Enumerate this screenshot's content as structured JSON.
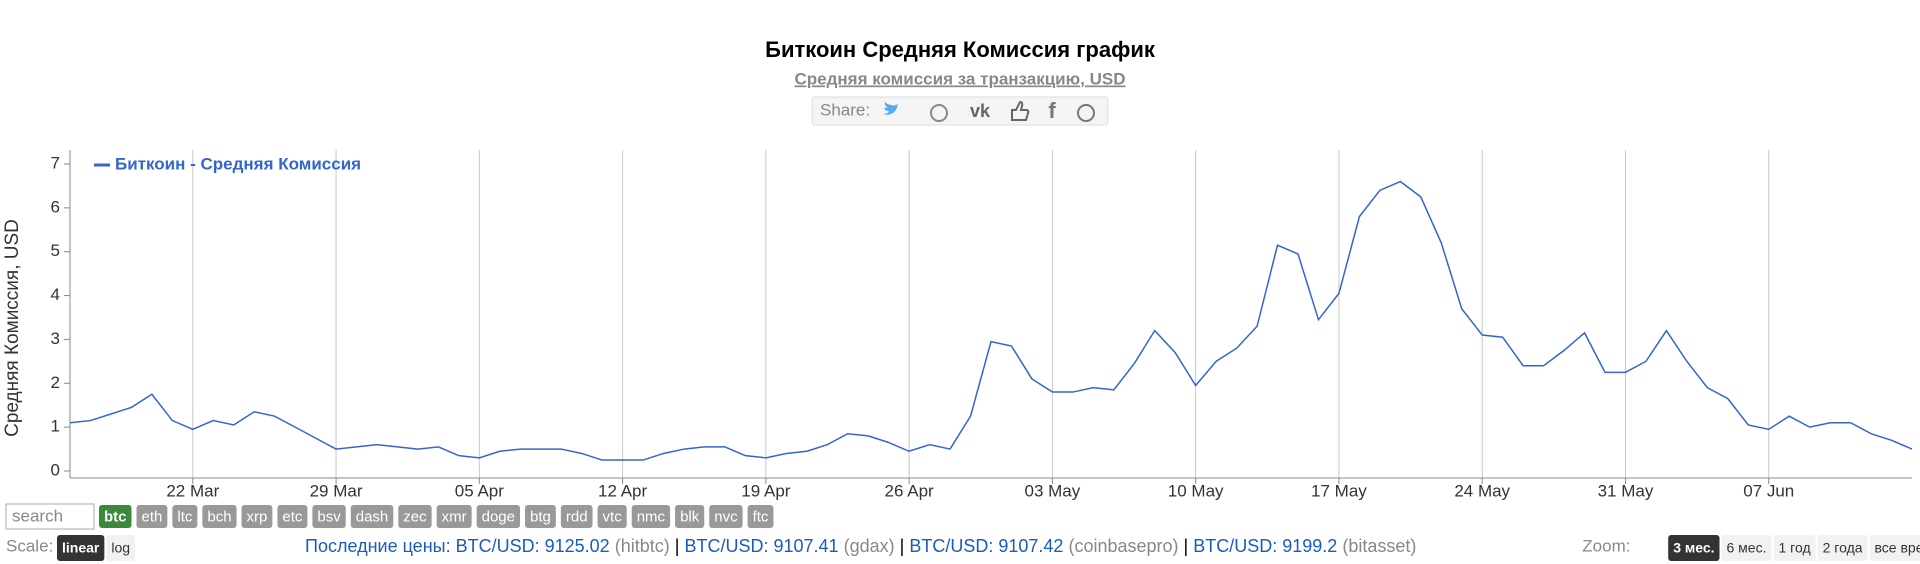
{
  "chart_data": {
    "type": "line",
    "title": "Биткоин Средняя Комиссия график",
    "subtitle": "Средняя комиссия за транзакцию, USD",
    "y_label": "Средняя Комиссия, USD",
    "x": [
      "16 Mar",
      "17 Mar",
      "18 Mar",
      "19 Mar",
      "20 Mar",
      "21 Mar",
      "22 Mar",
      "23 Mar",
      "24 Mar",
      "25 Mar",
      "26 Mar",
      "27 Mar",
      "28 Mar",
      "29 Mar",
      "30 Mar",
      "31 Mar",
      "01 Apr",
      "02 Apr",
      "03 Apr",
      "04 Apr",
      "05 Apr",
      "06 Apr",
      "07 Apr",
      "08 Apr",
      "09 Apr",
      "10 Apr",
      "11 Apr",
      "12 Apr",
      "13 Apr",
      "14 Apr",
      "15 Apr",
      "16 Apr",
      "17 Apr",
      "18 Apr",
      "19 Apr",
      "20 Apr",
      "21 Apr",
      "22 Apr",
      "23 Apr",
      "24 Apr",
      "25 Apr",
      "26 Apr",
      "27 Apr",
      "28 Apr",
      "29 Apr",
      "30 Apr",
      "01 May",
      "02 May",
      "03 May",
      "04 May",
      "05 May",
      "06 May",
      "07 May",
      "08 May",
      "09 May",
      "10 May",
      "11 May",
      "12 May",
      "13 May",
      "14 May",
      "15 May",
      "16 May",
      "17 May",
      "18 May",
      "19 May",
      "20 May",
      "21 May",
      "22 May",
      "23 May",
      "24 May",
      "25 May",
      "26 May",
      "27 May",
      "28 May",
      "29 May",
      "30 May",
      "31 May",
      "01 Jun",
      "02 Jun",
      "03 Jun",
      "04 Jun",
      "05 Jun",
      "06 Jun",
      "07 Jun",
      "08 Jun",
      "09 Jun",
      "10 Jun",
      "11 Jun",
      "12 Jun",
      "13 Jun",
      "14 Jun"
    ],
    "series": [
      {
        "name": "Биткоин - Средняя Комиссия",
        "color": "#3366cc",
        "values": [
          1.1,
          1.15,
          1.3,
          1.45,
          1.75,
          1.15,
          0.95,
          1.15,
          1.05,
          1.35,
          1.25,
          1.0,
          0.75,
          0.5,
          0.55,
          0.6,
          0.55,
          0.5,
          0.55,
          0.35,
          0.3,
          0.45,
          0.5,
          0.5,
          0.5,
          0.4,
          0.25,
          0.25,
          0.25,
          0.4,
          0.5,
          0.55,
          0.55,
          0.35,
          0.3,
          0.4,
          0.45,
          0.6,
          0.85,
          0.8,
          0.65,
          0.45,
          0.6,
          0.5,
          1.25,
          2.95,
          2.85,
          2.1,
          1.8,
          1.8,
          1.9,
          1.85,
          2.45,
          3.2,
          2.7,
          1.95,
          2.5,
          2.8,
          3.3,
          5.15,
          4.95,
          3.45,
          4.05,
          5.8,
          6.4,
          6.6,
          6.25,
          5.2,
          3.7,
          3.1,
          3.05,
          2.4,
          2.4,
          2.75,
          3.15,
          2.25,
          2.25,
          2.5,
          3.2,
          2.5,
          1.9,
          1.65,
          1.05,
          0.95,
          1.25,
          1.0,
          1.1,
          1.1,
          0.85,
          0.7,
          0.5
        ]
      }
    ],
    "xticks": [
      "22 Mar",
      "29 Mar",
      "05 Apr",
      "12 Apr",
      "19 Apr",
      "26 Apr",
      "03 May",
      "10 May",
      "17 May",
      "24 May",
      "31 May",
      "07 Jun"
    ],
    "ylim": [
      0,
      7
    ],
    "yticks": [
      0,
      1,
      2,
      3,
      4,
      5,
      6,
      7
    ],
    "grid": "x",
    "legend": "top-left"
  },
  "ui": {
    "share_label": "Share:",
    "search_placeholder": "search",
    "coins": [
      {
        "label": "btc",
        "selected": true
      },
      {
        "label": "eth",
        "selected": false
      },
      {
        "label": "ltc",
        "selected": false
      },
      {
        "label": "bch",
        "selected": false
      },
      {
        "label": "xrp",
        "selected": false
      },
      {
        "label": "etc",
        "selected": false
      },
      {
        "label": "bsv",
        "selected": false
      },
      {
        "label": "dash",
        "selected": false
      },
      {
        "label": "zec",
        "selected": false
      },
      {
        "label": "xmr",
        "selected": false
      },
      {
        "label": "doge",
        "selected": false
      },
      {
        "label": "btg",
        "selected": false
      },
      {
        "label": "rdd",
        "selected": false
      },
      {
        "label": "vtc",
        "selected": false
      },
      {
        "label": "nmc",
        "selected": false
      },
      {
        "label": "blk",
        "selected": false
      },
      {
        "label": "nvc",
        "selected": false
      },
      {
        "label": "ftc",
        "selected": false
      }
    ],
    "scale_label": "Scale:",
    "scale_options": [
      {
        "label": "linear",
        "selected": true
      },
      {
        "label": "log",
        "selected": false
      }
    ],
    "prices_label": "Последние цены:",
    "separator": "|",
    "prices": [
      {
        "pair": "BTC/USD:",
        "price": "9125.02",
        "source": "(hitbtc)"
      },
      {
        "pair": "BTC/USD:",
        "price": "9107.41",
        "source": "(gdax)"
      },
      {
        "pair": "BTC/USD:",
        "price": "9107.42",
        "source": "(coinbasepro)"
      },
      {
        "pair": "BTC/USD:",
        "price": "9199.2",
        "source": "(bitasset)"
      }
    ],
    "zoom_label": "Zoom:",
    "zoom_options": [
      {
        "label": "3 мес.",
        "selected": true
      },
      {
        "label": "6 мес.",
        "selected": false
      },
      {
        "label": "1 год",
        "selected": false
      },
      {
        "label": "2 года",
        "selected": false
      },
      {
        "label": "все время",
        "selected": false
      }
    ]
  }
}
